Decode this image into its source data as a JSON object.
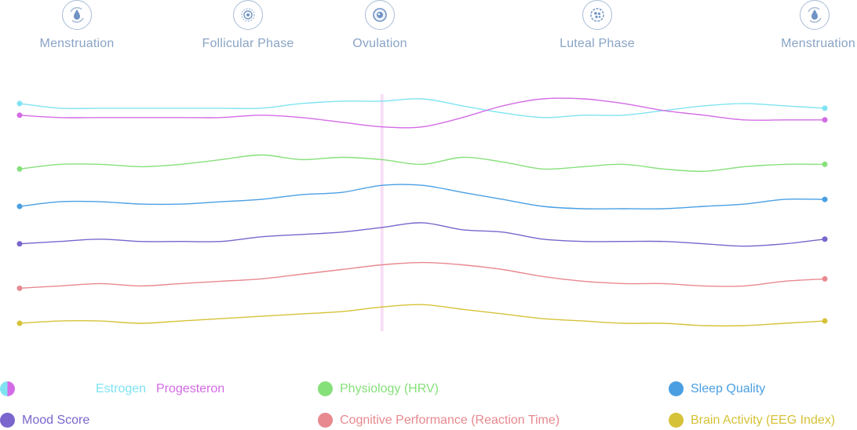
{
  "phases": [
    {
      "label": "Menstruation",
      "icon": "droplet-icon",
      "position": 0.0
    },
    {
      "label": "Follicular Phase",
      "icon": "follicle-icon",
      "position": 0.27
    },
    {
      "label": "Ovulation",
      "icon": "egg-icon",
      "position": 0.45
    },
    {
      "label": "Luteal Phase",
      "icon": "corpus-luteum-icon",
      "position": 0.72
    },
    {
      "label": "Menstruation",
      "icon": "droplet-icon",
      "position": 1.0
    }
  ],
  "chart_data": {
    "type": "line",
    "title": "",
    "xlabel": "",
    "ylabel": "",
    "x": [
      0,
      0.05,
      0.1,
      0.15,
      0.2,
      0.25,
      0.3,
      0.35,
      0.4,
      0.45,
      0.5,
      0.55,
      0.6,
      0.65,
      0.7,
      0.75,
      0.8,
      0.85,
      0.9,
      0.95,
      1.0
    ],
    "xlim": [
      0,
      1
    ],
    "ylim": [
      0,
      1
    ],
    "grid": false,
    "ovulation_marker_x": 0.45,
    "series": [
      {
        "name": "Estrogen",
        "color": "#7fe3f2",
        "values": [
          0.96,
          0.94,
          0.94,
          0.94,
          0.94,
          0.94,
          0.94,
          0.96,
          0.97,
          0.97,
          0.98,
          0.95,
          0.92,
          0.9,
          0.91,
          0.91,
          0.93,
          0.95,
          0.96,
          0.95,
          0.94
        ]
      },
      {
        "name": "Progesteron",
        "color": "#d46be6",
        "values": [
          0.91,
          0.9,
          0.9,
          0.9,
          0.9,
          0.9,
          0.91,
          0.9,
          0.88,
          0.86,
          0.86,
          0.9,
          0.95,
          0.98,
          0.98,
          0.96,
          0.93,
          0.91,
          0.89,
          0.89,
          0.89
        ]
      },
      {
        "name": "Physiology (HRV)",
        "color": "#86e07a",
        "values": [
          0.68,
          0.7,
          0.7,
          0.69,
          0.7,
          0.72,
          0.74,
          0.72,
          0.73,
          0.72,
          0.7,
          0.73,
          0.71,
          0.68,
          0.69,
          0.7,
          0.68,
          0.67,
          0.69,
          0.7,
          0.7
        ]
      },
      {
        "name": "Sleep Quality",
        "color": "#4a9fe3",
        "values": [
          0.52,
          0.54,
          0.54,
          0.53,
          0.53,
          0.54,
          0.55,
          0.57,
          0.58,
          0.61,
          0.61,
          0.58,
          0.55,
          0.52,
          0.51,
          0.51,
          0.51,
          0.52,
          0.53,
          0.55,
          0.55
        ]
      },
      {
        "name": "Mood Score",
        "color": "#7a66cc",
        "values": [
          0.36,
          0.37,
          0.38,
          0.37,
          0.37,
          0.37,
          0.39,
          0.4,
          0.41,
          0.43,
          0.45,
          0.42,
          0.41,
          0.38,
          0.37,
          0.37,
          0.37,
          0.36,
          0.35,
          0.36,
          0.38
        ]
      },
      {
        "name": "Cognitive Performance (Reaction Time)",
        "color": "#e8898f",
        "values": [
          0.17,
          0.18,
          0.19,
          0.18,
          0.19,
          0.2,
          0.21,
          0.23,
          0.25,
          0.27,
          0.28,
          0.27,
          0.25,
          0.22,
          0.2,
          0.19,
          0.19,
          0.18,
          0.18,
          0.2,
          0.21
        ]
      },
      {
        "name": "Brain Activity (EEG Index)",
        "color": "#d6c238",
        "values": [
          0.02,
          0.03,
          0.03,
          0.02,
          0.03,
          0.04,
          0.05,
          0.06,
          0.07,
          0.09,
          0.1,
          0.08,
          0.06,
          0.04,
          0.03,
          0.02,
          0.02,
          0.01,
          0.01,
          0.02,
          0.03
        ]
      }
    ]
  },
  "legend": {
    "hormones_swatch_colors": [
      "#7fe3f2",
      "#d46be6"
    ],
    "estrogen": {
      "label": "Estrogen",
      "color": "#7fe3f2"
    },
    "progesteron": {
      "label": "Progesteron",
      "color": "#d46be6"
    },
    "hrv": {
      "label": "Physiology (HRV)",
      "color": "#86e07a"
    },
    "sleep": {
      "label": "Sleep Quality",
      "color": "#4a9fe3"
    },
    "mood": {
      "label": "Mood Score",
      "color": "#7a66cc"
    },
    "cognitive": {
      "label": "Cognitive Performance (Reaction Time)",
      "color": "#e8898f"
    },
    "brain": {
      "label": "Brain Activity (EEG Index)",
      "color": "#d6c238"
    }
  },
  "colors": {
    "icon_stroke": "#a9bdd6",
    "phase_label": "#8aa4c5",
    "marker": "#e8a0e6"
  }
}
